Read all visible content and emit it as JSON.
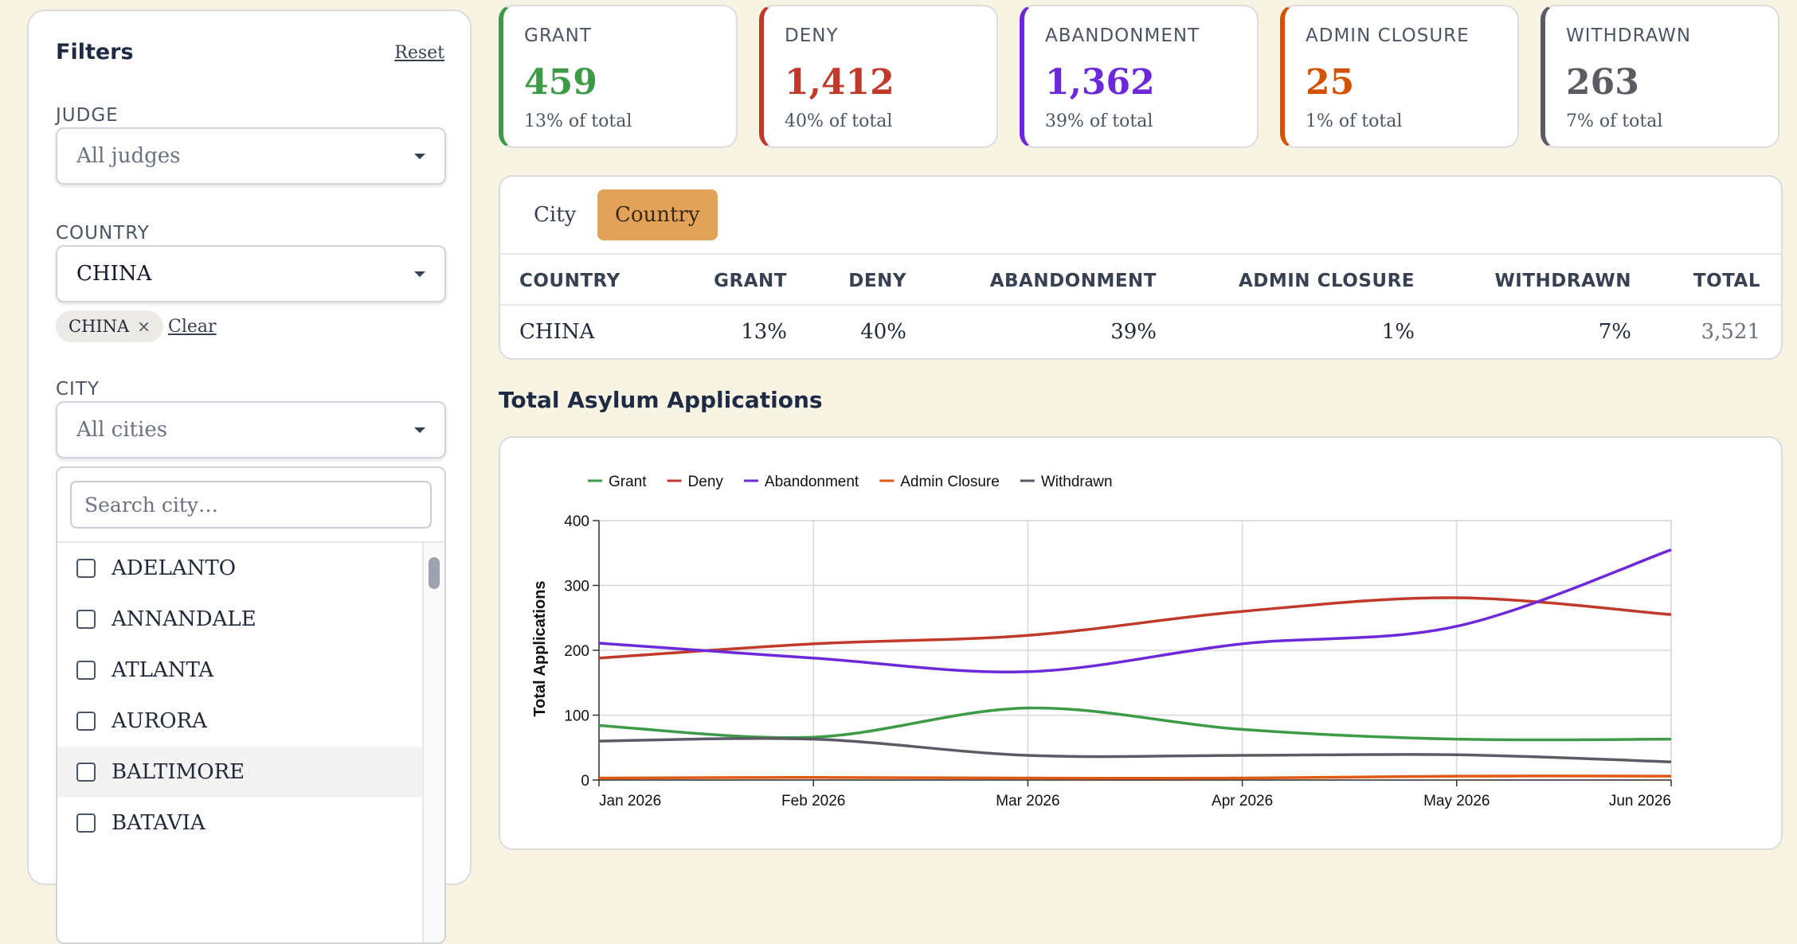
{
  "filters": {
    "title": "Filters",
    "reset_label": "Reset",
    "judge": {
      "label": "JUDGE",
      "placeholder": "All judges"
    },
    "country": {
      "label": "COUNTRY",
      "value": "CHINA",
      "chip": "CHINA",
      "chip_remove": "×",
      "clear_label": "Clear"
    },
    "city": {
      "label": "CITY",
      "placeholder": "All cities",
      "search_placeholder": "Search city…",
      "items": [
        "ADELANTO",
        "ANNANDALE",
        "ATLANTA",
        "AURORA",
        "BALTIMORE",
        "BATAVIA"
      ]
    }
  },
  "cards": [
    {
      "label": "GRANT",
      "value": "459",
      "sub": "13% of total",
      "color": "#3d9a47"
    },
    {
      "label": "DENY",
      "value": "1,412",
      "sub": "40% of total",
      "color": "#c0392b"
    },
    {
      "label": "ABANDONMENT",
      "value": "1,362",
      "sub": "39% of total",
      "color": "#6d28d9"
    },
    {
      "label": "ADMIN CLOSURE",
      "value": "25",
      "sub": "1% of total",
      "color": "#d35400"
    },
    {
      "label": "WITHDRAWN",
      "value": "263",
      "sub": "7% of total",
      "color": "#5b5b63"
    }
  ],
  "table": {
    "tabs": [
      "City",
      "Country"
    ],
    "active_tab": "Country",
    "headers": [
      "COUNTRY",
      "GRANT",
      "DENY",
      "ABANDONMENT",
      "ADMIN CLOSURE",
      "WITHDRAWN",
      "TOTAL"
    ],
    "rows": [
      [
        "CHINA",
        "13%",
        "40%",
        "39%",
        "1%",
        "7%",
        "3,521"
      ]
    ]
  },
  "chart_section_title": "Total Asylum Applications",
  "chart_data": {
    "type": "line",
    "x": [
      "Jan 2026",
      "Feb 2026",
      "Mar 2026",
      "Apr 2026",
      "May 2026",
      "Jun 2026"
    ],
    "ylabel": "Total Applications",
    "ylim": [
      0,
      400
    ],
    "yticks": [
      0,
      100,
      200,
      300,
      400
    ],
    "grid": true,
    "legend": "top-left",
    "series": [
      {
        "name": "Grant",
        "color": "#3d9a47",
        "values": [
          84,
          66,
          111,
          78,
          63,
          63
        ]
      },
      {
        "name": "Deny",
        "color": "#c0392b",
        "values": [
          188,
          210,
          223,
          260,
          281,
          255
        ]
      },
      {
        "name": "Abandonment",
        "color": "#6d28d9",
        "values": [
          211,
          188,
          167,
          210,
          237,
          355
        ]
      },
      {
        "name": "Admin Closure",
        "color": "#e05a14",
        "values": [
          3,
          4,
          3,
          3,
          6,
          6
        ]
      },
      {
        "name": "Withdrawn",
        "color": "#5b5b63",
        "values": [
          60,
          63,
          38,
          38,
          39,
          28
        ]
      }
    ]
  }
}
